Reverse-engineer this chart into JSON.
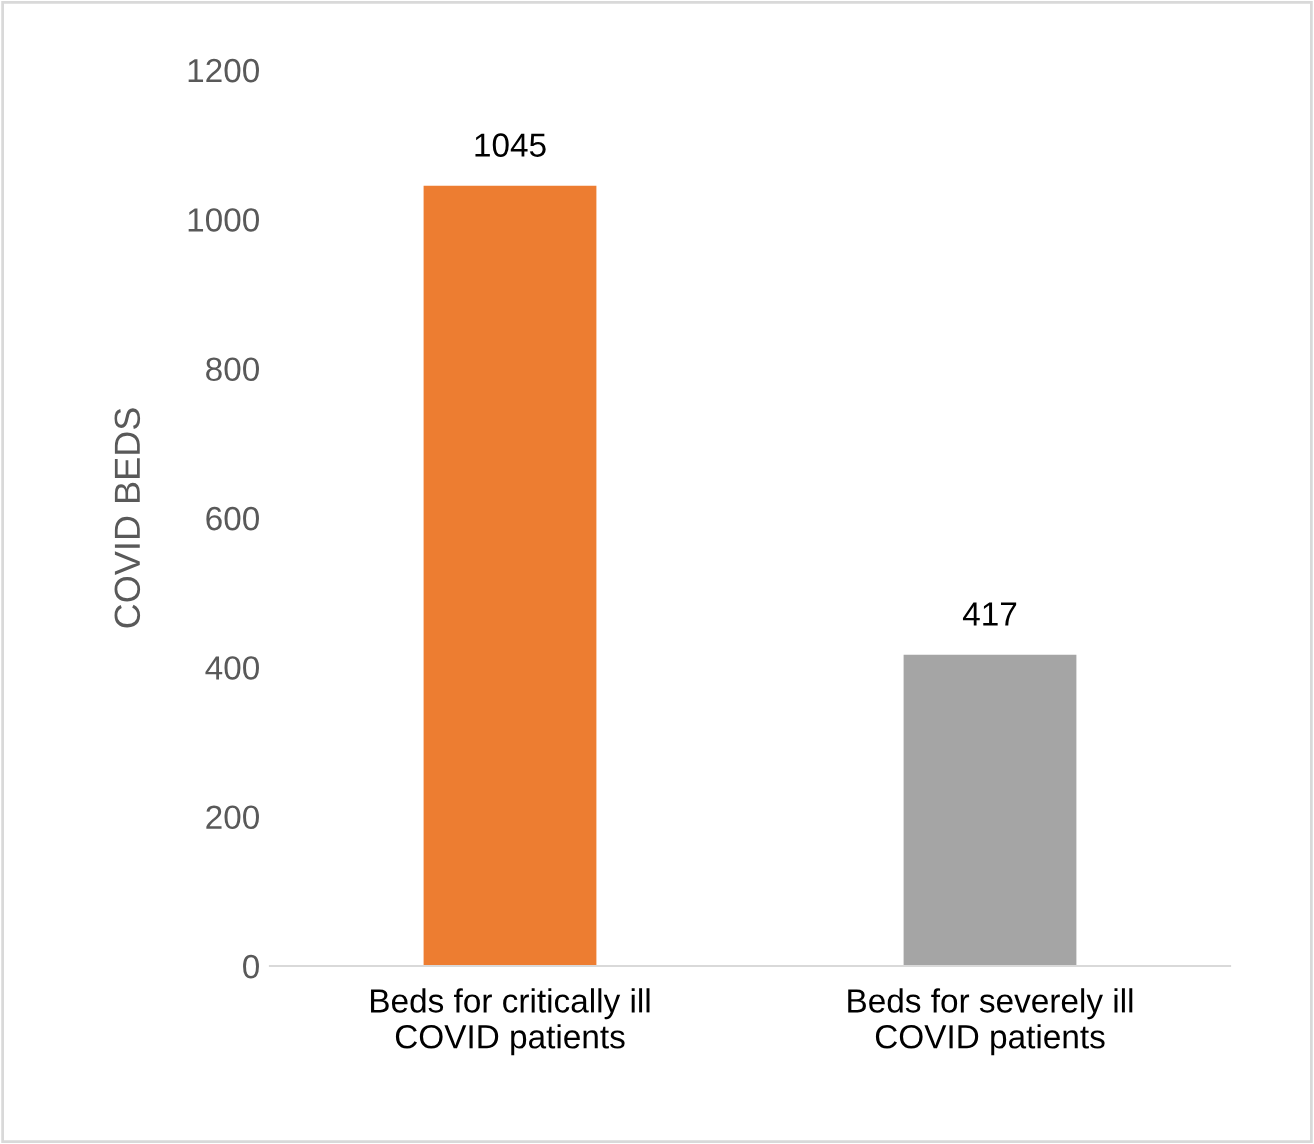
{
  "chart_data": {
    "type": "bar",
    "ylabel": "COVID BEDS",
    "categories": [
      "Beds for critically ill\nCOVID patients",
      "Beds for severely ill\nCOVID patients"
    ],
    "values": [
      1045,
      417
    ],
    "colors": [
      "#ed7d31",
      "#a5a5a5"
    ],
    "ylim": [
      0,
      1200
    ],
    "yticks": [
      0,
      200,
      400,
      600,
      800,
      1000,
      1200
    ],
    "grid": false,
    "data_labels": true
  }
}
